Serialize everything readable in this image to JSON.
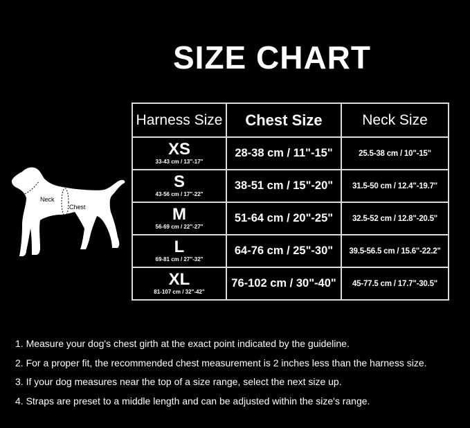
{
  "title": "SIZE CHART",
  "diagram": {
    "neck_label": "Neck",
    "chest_label": "Chest"
  },
  "table": {
    "headers": [
      "Harness Size",
      "Chest Size",
      "Neck Size"
    ],
    "rows": [
      {
        "size": "XS",
        "harness": "33-43 cm / 13\"-17\"",
        "chest": "28-38 cm / 11\"-15\"",
        "neck": "25.5-38 cm / 10\"-15\""
      },
      {
        "size": "S",
        "harness": "43-56 cm / 17\"-22\"",
        "chest": "38-51 cm / 15\"-20\"",
        "neck": "31.5-50 cm / 12.4\"-19.7\""
      },
      {
        "size": "M",
        "harness": "56-69 cm / 22\"-27\"",
        "chest": "51-64 cm / 20\"-25\"",
        "neck": "32.5-52 cm / 12.8\"-20.5\""
      },
      {
        "size": "L",
        "harness": "69-81 cm / 27\"-32\"",
        "chest": "64-76 cm / 25\"-30\"",
        "neck": "39.5-56.5 cm / 15.6\"-22.2\""
      },
      {
        "size": "XL",
        "harness": "81-107 cm / 32\"-42\"",
        "chest": "76-102 cm / 30\"-40\"",
        "neck": "45-77.5 cm / 17.7\"-30.5\""
      }
    ]
  },
  "notes": [
    "1. Measure your dog's chest girth at the exact point indicated by the guideline.",
    "2. For a proper fit, the recommended chest measurement is 2 inches less than the harness size.",
    "3. If your dog measures near the top of a size range, select the next size up.",
    "4. Straps are preset to a middle length and can be adjusted within the size's range."
  ]
}
